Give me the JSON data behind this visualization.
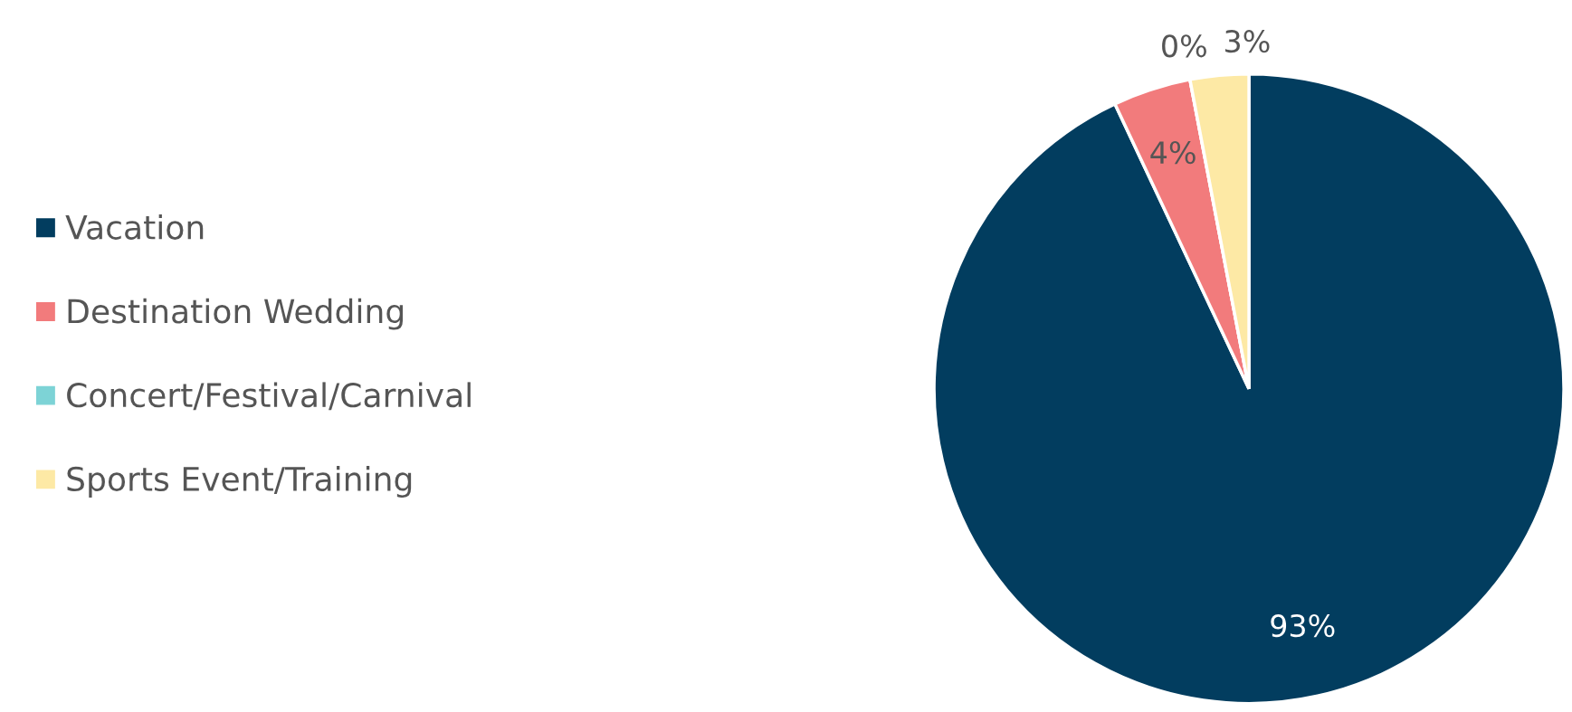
{
  "chart_data": {
    "type": "pie",
    "categories": [
      "Vacation",
      "Destination Wedding",
      "Concert/Festival/Carnival",
      "Sports Event/Training"
    ],
    "values": [
      93,
      4,
      0,
      3
    ],
    "colors": [
      "#023d5f",
      "#f27b7c",
      "#7dd3d6",
      "#fde9a5"
    ],
    "value_labels": [
      "93%",
      "4%",
      "0%",
      "3%"
    ],
    "legend": "left"
  }
}
